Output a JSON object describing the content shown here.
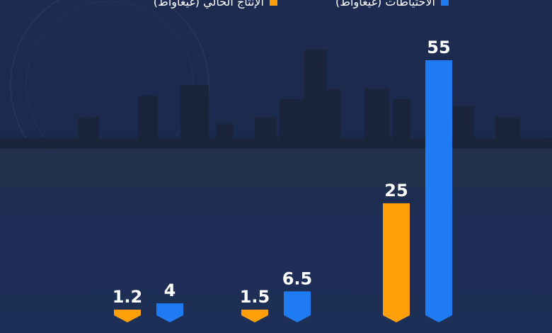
{
  "legend": [
    {
      "label": "الاحتياطات (غيغاواط)",
      "color": "#1e7bf2"
    },
    {
      "label": "الإنتاج الحالي (غيغاواط)",
      "color": "#ff9f0a"
    }
  ],
  "chart_data": {
    "type": "bar",
    "categories": [
      "",
      "",
      ""
    ],
    "series": [
      {
        "name": "الإنتاج الحالي (غيغاواط)",
        "color": "#ff9f0a",
        "values": [
          1.2,
          1.5,
          25
        ],
        "labels": [
          "1.2",
          "1.5",
          "25"
        ]
      },
      {
        "name": "الاحتياطات (غيغاواط)",
        "color": "#1e7bf2",
        "values": [
          4,
          6.5,
          55
        ],
        "labels": [
          "4",
          "6.5",
          "55"
        ]
      }
    ],
    "title": "",
    "xlabel": "",
    "ylabel": "",
    "ylim": [
      0,
      55
    ],
    "grid": false,
    "legend_position": "top"
  }
}
